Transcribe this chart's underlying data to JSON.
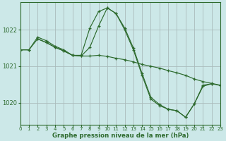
{
  "title": "Graphe pression niveau de la mer (hPa)",
  "bg_color": "#cce8e8",
  "grid_color": "#aabbbb",
  "line_color": "#2d6a2d",
  "xlim": [
    0,
    23
  ],
  "ylim": [
    1019.4,
    1022.75
  ],
  "yticks": [
    1020,
    1021,
    1022
  ],
  "xticks": [
    0,
    1,
    2,
    3,
    4,
    5,
    6,
    7,
    8,
    9,
    10,
    11,
    12,
    13,
    14,
    15,
    16,
    17,
    18,
    19,
    20,
    21,
    22,
    23
  ],
  "lineA": {
    "x": [
      0,
      1,
      2,
      3,
      4,
      5,
      6,
      7,
      8,
      9,
      10,
      11,
      12,
      13,
      14,
      15,
      16,
      17,
      18,
      19,
      20,
      21,
      22
    ],
    "y": [
      1021.45,
      1021.45,
      1021.8,
      1021.7,
      1021.55,
      1021.45,
      1021.3,
      1021.3,
      1022.05,
      1022.5,
      1022.6,
      1022.45,
      1022.05,
      1021.5,
      1020.8,
      1020.15,
      1019.95,
      1019.82,
      1019.78,
      1019.6,
      1019.97,
      1020.48,
      1020.52
    ]
  },
  "lineB": {
    "x": [
      0,
      1,
      2,
      3,
      4,
      5,
      6,
      7,
      8,
      9,
      10,
      11,
      12,
      13,
      14,
      15,
      16,
      17,
      18,
      19,
      20,
      21,
      22,
      23
    ],
    "y": [
      1021.45,
      1021.45,
      1021.75,
      1021.65,
      1021.52,
      1021.42,
      1021.3,
      1021.28,
      1021.28,
      1021.3,
      1021.27,
      1021.22,
      1021.18,
      1021.12,
      1021.05,
      1021.0,
      1020.95,
      1020.88,
      1020.82,
      1020.75,
      1020.65,
      1020.58,
      1020.53,
      1020.48
    ]
  },
  "lineC": {
    "x": [
      2,
      3,
      4,
      5,
      6,
      7,
      8,
      9,
      10,
      11,
      12,
      13,
      14,
      15,
      16,
      17,
      18,
      19,
      20,
      21,
      22,
      23
    ],
    "y": [
      1021.75,
      1021.65,
      1021.52,
      1021.42,
      1021.3,
      1021.28,
      1021.52,
      1022.1,
      1022.6,
      1022.45,
      1022.0,
      1021.45,
      1020.75,
      1020.1,
      1019.92,
      1019.82,
      1019.78,
      1019.6,
      1019.97,
      1020.45,
      1020.52,
      1020.47
    ]
  }
}
